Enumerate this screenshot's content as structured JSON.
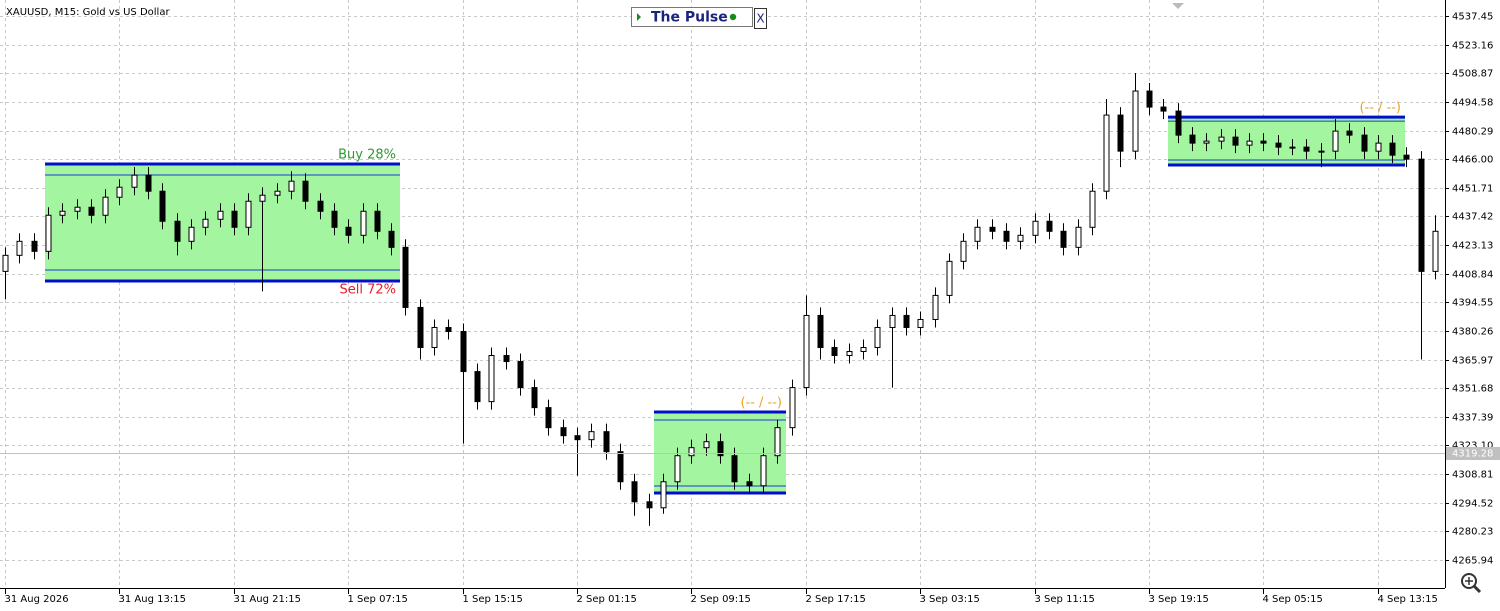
{
  "chart_data": {
    "type": "candlestick",
    "title": "XAUUSD, M15:  Gold vs US Dollar",
    "panel_title": "The Pulse",
    "close_button": "X",
    "categories": [
      "31 Aug 2026",
      null,
      null,
      null,
      null,
      null,
      null,
      null,
      "31 Aug 13:15",
      null,
      null,
      null,
      null,
      null,
      null,
      null,
      "31 Aug 21:15",
      null,
      null,
      null,
      null,
      null,
      null,
      null,
      "1 Sep 07:15",
      null,
      null,
      null,
      null,
      null,
      null,
      null,
      "1 Sep 15:15",
      null,
      null,
      null,
      null,
      null,
      null,
      null,
      "2 Sep 01:15",
      null,
      null,
      null,
      null,
      null,
      null,
      null,
      "2 Sep 09:15",
      null,
      null,
      null,
      null,
      null,
      null,
      null,
      "2 Sep 17:15",
      null,
      null,
      null,
      null,
      null,
      null,
      null,
      "3 Sep 03:15",
      null,
      null,
      null,
      null,
      null,
      null,
      null,
      "3 Sep 11:15",
      null,
      null,
      null,
      null,
      null,
      null,
      null,
      "3 Sep 19:15",
      null,
      null,
      null,
      null,
      null,
      null,
      null,
      "4 Sep 05:15",
      null,
      null,
      null,
      null,
      null,
      null,
      null,
      "4 Sep 13:15",
      null,
      null,
      null,
      null
    ],
    "open": [
      4410,
      4418,
      4425,
      4420,
      4438,
      4440,
      4442,
      4438,
      4447,
      4452,
      4458,
      4450,
      4435,
      4425,
      4432,
      4436,
      4440,
      4432,
      4445,
      4448,
      4450,
      4455,
      4445,
      4440,
      4432,
      4428,
      4440,
      4430,
      4422,
      4392,
      4372,
      4382,
      4380,
      4360,
      4345,
      4368,
      4365,
      4352,
      4342,
      4332,
      4328,
      4326,
      4330,
      4320,
      4305,
      4295,
      4292,
      4305,
      4318,
      4322,
      4325,
      4318,
      4305,
      4303,
      4318,
      4332,
      4352,
      4388,
      4372,
      4368,
      4370,
      4372,
      4382,
      4388,
      4382,
      4386,
      4398,
      4415,
      4425,
      4432,
      4430,
      4425,
      4428,
      4435,
      4430,
      4422,
      4432,
      4450,
      4488,
      4470,
      4500,
      4492,
      4490,
      4478,
      4474,
      4475,
      4477,
      4473,
      4475,
      4474,
      4472,
      4472,
      4470,
      4470,
      4480,
      4478,
      4470,
      4474,
      4468,
      4466,
      4410
    ],
    "high": [
      4422,
      4429,
      4429,
      4442,
      4444,
      4446,
      4446,
      4451,
      4456,
      4462,
      4462,
      4454,
      4439,
      4436,
      4440,
      4444,
      4444,
      4449,
      4452,
      4454,
      4460,
      4459,
      4449,
      4444,
      4436,
      4444,
      4444,
      4434,
      4426,
      4396,
      4386,
      4386,
      4384,
      4364,
      4372,
      4372,
      4369,
      4356,
      4346,
      4336,
      4332,
      4334,
      4334,
      4324,
      4309,
      4299,
      4309,
      4322,
      4326,
      4329,
      4329,
      4322,
      4309,
      4322,
      4336,
      4356,
      4398,
      4392,
      4376,
      4374,
      4376,
      4386,
      4392,
      4392,
      4390,
      4402,
      4419,
      4429,
      4436,
      4436,
      4434,
      4432,
      4439,
      4439,
      4434,
      4436,
      4454,
      4496,
      4492,
      4509,
      4504,
      4496,
      4494,
      4482,
      4479,
      4481,
      4481,
      4479,
      4479,
      4478,
      4476,
      4476,
      4474,
      4486,
      4484,
      4482,
      4478,
      4478,
      4472,
      4470,
      4438
    ],
    "low": [
      4396,
      4414,
      4416,
      4416,
      4434,
      4436,
      4434,
      4434,
      4443,
      4448,
      4446,
      4431,
      4418,
      4421,
      4428,
      4432,
      4428,
      4428,
      4400,
      4444,
      4446,
      4441,
      4436,
      4428,
      4424,
      4424,
      4426,
      4418,
      4388,
      4366,
      4368,
      4376,
      4324,
      4341,
      4341,
      4361,
      4348,
      4338,
      4328,
      4324,
      4308,
      4322,
      4316,
      4301,
      4288,
      4283,
      4289,
      4301,
      4314,
      4318,
      4314,
      4301,
      4299,
      4299,
      4314,
      4328,
      4348,
      4366,
      4364,
      4364,
      4366,
      4368,
      4352,
      4378,
      4378,
      4382,
      4394,
      4411,
      4421,
      4426,
      4421,
      4421,
      4424,
      4426,
      4418,
      4418,
      4428,
      4446,
      4462,
      4466,
      4488,
      4486,
      4474,
      4470,
      4470,
      4471,
      4469,
      4469,
      4470,
      4468,
      4468,
      4466,
      4462,
      4466,
      4474,
      4466,
      4466,
      4464,
      4462,
      4366,
      4406
    ],
    "close": [
      4418,
      4425,
      4420,
      4438,
      4440,
      4442,
      4438,
      4447,
      4452,
      4458,
      4450,
      4435,
      4425,
      4432,
      4436,
      4440,
      4432,
      4445,
      4448,
      4450,
      4455,
      4445,
      4440,
      4432,
      4428,
      4440,
      4430,
      4422,
      4392,
      4372,
      4382,
      4380,
      4360,
      4345,
      4368,
      4365,
      4352,
      4342,
      4332,
      4328,
      4326,
      4330,
      4320,
      4305,
      4295,
      4292,
      4305,
      4318,
      4322,
      4325,
      4318,
      4305,
      4303,
      4318,
      4332,
      4352,
      4388,
      4372,
      4368,
      4370,
      4372,
      4382,
      4388,
      4382,
      4386,
      4398,
      4415,
      4425,
      4432,
      4430,
      4425,
      4428,
      4435,
      4430,
      4422,
      4432,
      4450,
      4488,
      4470,
      4500,
      4492,
      4490,
      4478,
      4474,
      4475,
      4477,
      4473,
      4475,
      4474,
      4472,
      4472,
      4470,
      4470,
      4480,
      4478,
      4470,
      4474,
      4468,
      4466,
      4410,
      4430
    ],
    "ylim": [
      4251.97,
      4545.44
    ],
    "yticks": [
      4537.45,
      4523.16,
      4508.87,
      4494.58,
      4480.29,
      {
        "value": 4466,
        "label": "4466.00"
      },
      4451.71,
      4437.42,
      4423.13,
      4408.84,
      4394.55,
      4380.26,
      4365.97,
      4351.68,
      4337.39,
      {
        "value": 4323.1,
        "label": "4323.10"
      },
      4308.81,
      4294.52,
      4280.23,
      4265.94
    ],
    "last_price": 4319.28,
    "grid": true,
    "ranges": [
      {
        "high": 4463.6,
        "low": 4405.2,
        "inner_high": 4458.1,
        "inner_low": 4410.7,
        "upper_label": "Buy 28%",
        "lower_label": "Sell 72%"
      },
      {
        "high": 4339.8,
        "low": 4299.4,
        "inner_high": 4335.8,
        "inner_low": 4302.9,
        "upper_label": "(-- / --)"
      },
      {
        "high": 4487.0,
        "low": 4463.1,
        "inner_high": 4485.0,
        "inner_low": 4465.6,
        "upper_label": "(-- / --)"
      }
    ]
  }
}
